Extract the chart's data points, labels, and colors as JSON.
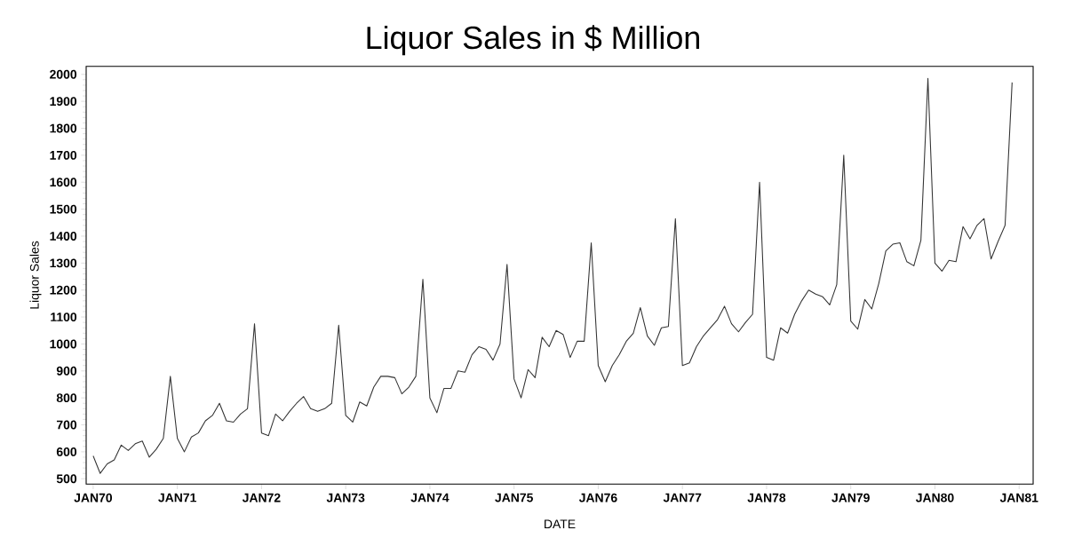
{
  "chart_data": {
    "type": "line",
    "title": "Liquor Sales in $ Million",
    "xlabel": "DATE",
    "ylabel": "Liquor Sales",
    "x": [
      "1970-01",
      "1970-02",
      "1970-03",
      "1970-04",
      "1970-05",
      "1970-06",
      "1970-07",
      "1970-08",
      "1970-09",
      "1970-10",
      "1970-11",
      "1970-12",
      "1971-01",
      "1971-02",
      "1971-03",
      "1971-04",
      "1971-05",
      "1971-06",
      "1971-07",
      "1971-08",
      "1971-09",
      "1971-10",
      "1971-11",
      "1971-12",
      "1972-01",
      "1972-02",
      "1972-03",
      "1972-04",
      "1972-05",
      "1972-06",
      "1972-07",
      "1972-08",
      "1972-09",
      "1972-10",
      "1972-11",
      "1972-12",
      "1973-01",
      "1973-02",
      "1973-03",
      "1973-04",
      "1973-05",
      "1973-06",
      "1973-07",
      "1973-08",
      "1973-09",
      "1973-10",
      "1973-11",
      "1973-12",
      "1974-01",
      "1974-02",
      "1974-03",
      "1974-04",
      "1974-05",
      "1974-06",
      "1974-07",
      "1974-08",
      "1974-09",
      "1974-10",
      "1974-11",
      "1974-12",
      "1975-01",
      "1975-02",
      "1975-03",
      "1975-04",
      "1975-05",
      "1975-06",
      "1975-07",
      "1975-08",
      "1975-09",
      "1975-10",
      "1975-11",
      "1975-12",
      "1976-01",
      "1976-02",
      "1976-03",
      "1976-04",
      "1976-05",
      "1976-06",
      "1976-07",
      "1976-08",
      "1976-09",
      "1976-10",
      "1976-11",
      "1976-12",
      "1977-01",
      "1977-02",
      "1977-03",
      "1977-04",
      "1977-05",
      "1977-06",
      "1977-07",
      "1977-08",
      "1977-09",
      "1977-10",
      "1977-11",
      "1977-12",
      "1978-01",
      "1978-02",
      "1978-03",
      "1978-04",
      "1978-05",
      "1978-06",
      "1978-07",
      "1978-08",
      "1978-09",
      "1978-10",
      "1978-11",
      "1978-12",
      "1979-01",
      "1979-02",
      "1979-03",
      "1979-04",
      "1979-05",
      "1979-06",
      "1979-07",
      "1979-08",
      "1979-09",
      "1979-10",
      "1979-11",
      "1979-12",
      "1980-01",
      "1980-02",
      "1980-03",
      "1980-04",
      "1980-05",
      "1980-06",
      "1980-07",
      "1980-08",
      "1980-09",
      "1980-10",
      "1980-11",
      "1980-12"
    ],
    "values": [
      585,
      520,
      555,
      570,
      625,
      605,
      630,
      640,
      580,
      610,
      650,
      880,
      650,
      600,
      655,
      670,
      715,
      735,
      780,
      715,
      710,
      740,
      760,
      1075,
      670,
      660,
      740,
      715,
      750,
      780,
      805,
      760,
      750,
      760,
      780,
      1070,
      735,
      710,
      785,
      770,
      840,
      880,
      880,
      875,
      815,
      840,
      880,
      1240,
      800,
      745,
      835,
      835,
      900,
      895,
      960,
      990,
      980,
      940,
      1000,
      1295,
      870,
      800,
      905,
      875,
      1025,
      990,
      1050,
      1035,
      950,
      1010,
      1010,
      1375,
      920,
      860,
      920,
      960,
      1010,
      1040,
      1135,
      1030,
      995,
      1060,
      1065,
      1465,
      920,
      930,
      990,
      1030,
      1060,
      1090,
      1140,
      1075,
      1045,
      1080,
      1110,
      1600,
      950,
      940,
      1060,
      1040,
      1110,
      1160,
      1200,
      1185,
      1175,
      1145,
      1220,
      1700,
      1085,
      1055,
      1165,
      1130,
      1225,
      1345,
      1370,
      1375,
      1305,
      1290,
      1385,
      1985,
      1300,
      1270,
      1310,
      1305,
      1435,
      1390,
      1440,
      1465,
      1315,
      1380,
      1440,
      1970
    ],
    "color": "#333333",
    "xlim": [
      "1969-12",
      "1981-03"
    ],
    "xticks": [
      {
        "value": "1970-01",
        "label": "JAN70"
      },
      {
        "value": "1971-01",
        "label": "JAN71"
      },
      {
        "value": "1972-01",
        "label": "JAN72"
      },
      {
        "value": "1973-01",
        "label": "JAN73"
      },
      {
        "value": "1974-01",
        "label": "JAN74"
      },
      {
        "value": "1975-01",
        "label": "JAN75"
      },
      {
        "value": "1976-01",
        "label": "JAN76"
      },
      {
        "value": "1977-01",
        "label": "JAN77"
      },
      {
        "value": "1978-01",
        "label": "JAN78"
      },
      {
        "value": "1979-01",
        "label": "JAN79"
      },
      {
        "value": "1980-01",
        "label": "JAN80"
      },
      {
        "value": "1981-01",
        "label": "JAN81"
      }
    ],
    "ylim": [
      480,
      2030
    ],
    "yticks": [
      500,
      600,
      700,
      800,
      900,
      1000,
      1100,
      1200,
      1300,
      1400,
      1500,
      1600,
      1700,
      1800,
      1900,
      2000
    ],
    "grid": false,
    "marker": "none",
    "line_style": "solid"
  }
}
